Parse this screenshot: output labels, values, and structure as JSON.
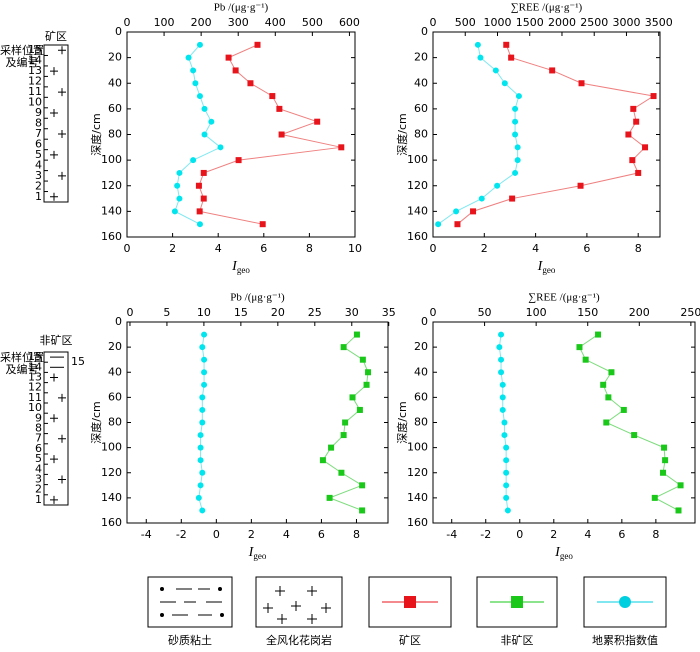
{
  "chart_data": [
    {
      "type": "line",
      "x2label": "Pb /(μg·g⁻¹)",
      "xlabel": [
        "I",
        "geo"
      ],
      "ylabel": "深度/cm",
      "y": [
        10,
        20,
        30,
        40,
        50,
        60,
        70,
        80,
        90,
        100,
        110,
        120,
        130,
        140,
        150
      ],
      "ylim": [
        0,
        160
      ],
      "yticks": [
        0,
        20,
        40,
        60,
        80,
        100,
        120,
        140,
        160
      ],
      "xlim": [
        0,
        10
      ],
      "xticks": [
        0,
        2,
        4,
        6,
        8,
        10
      ],
      "x2lim": [
        0,
        615
      ],
      "x2ticks": [
        0,
        100,
        200,
        300,
        400,
        500,
        600
      ],
      "series": [
        {
          "color": "#e8141c",
          "line_color": "#f08080",
          "marker": "square",
          "axis": "x2",
          "values": [
            352,
            274,
            293,
            333,
            392,
            411,
            513,
            417,
            578,
            301,
            207,
            194,
            207,
            196,
            366
          ]
        },
        {
          "color": "#00e5ee",
          "line_color": "#7fe8f0",
          "marker": "circle",
          "axis": "x",
          "values": [
            3.2,
            2.7,
            2.9,
            3.0,
            3.2,
            3.4,
            3.7,
            3.4,
            4.1,
            2.9,
            2.3,
            2.2,
            2.3,
            2.1,
            3.2
          ]
        }
      ]
    },
    {
      "type": "line",
      "x2label": "∑REE /(μg·g⁻¹)",
      "xlabel": [
        "I",
        "geo"
      ],
      "ylabel": "深度/cm",
      "y": [
        10,
        20,
        30,
        40,
        50,
        60,
        70,
        80,
        90,
        100,
        110,
        120,
        130,
        140,
        150
      ],
      "ylim": [
        0,
        160
      ],
      "yticks": [
        0,
        20,
        40,
        60,
        80,
        100,
        120,
        140,
        160
      ],
      "xlim": [
        0,
        8.85
      ],
      "xticks": [
        0,
        2,
        4,
        6,
        8
      ],
      "x2lim": [
        0,
        3520
      ],
      "x2ticks": [
        0,
        500,
        1000,
        1500,
        2000,
        2500,
        3000,
        3500
      ],
      "series": [
        {
          "color": "#e8141c",
          "line_color": "#f08080",
          "marker": "square",
          "axis": "x2",
          "values": [
            1136,
            1212,
            1848,
            2303,
            3420,
            3106,
            3151,
            3030,
            3288,
            3091,
            3182,
            2288,
            1227,
            621,
            379
          ]
        },
        {
          "color": "#00e5ee",
          "line_color": "#7fe8f0",
          "marker": "circle",
          "axis": "x",
          "values": [
            1.75,
            1.85,
            2.45,
            2.8,
            3.35,
            3.2,
            3.2,
            3.2,
            3.3,
            3.3,
            3.2,
            2.5,
            1.9,
            0.9,
            0.2
          ]
        }
      ]
    },
    {
      "type": "line",
      "x2label": "Pb /(μg·g⁻¹)",
      "xlabel": [
        "I",
        "geo"
      ],
      "ylabel": "深度/cm",
      "y": [
        10,
        20,
        30,
        40,
        50,
        60,
        70,
        80,
        90,
        100,
        110,
        120,
        130,
        140,
        150
      ],
      "ylim": [
        0,
        160
      ],
      "yticks": [
        0,
        20,
        40,
        60,
        80,
        100,
        120,
        140,
        160
      ],
      "xlim": [
        -5.1,
        9.8
      ],
      "xticks": [
        -4,
        -2,
        0,
        2,
        4,
        6,
        8
      ],
      "x2lim": [
        -0.4,
        34.9
      ],
      "x2ticks": [
        0,
        5,
        10,
        15,
        20,
        25,
        30,
        35
      ],
      "series": [
        {
          "color": "#19c819",
          "line_color": "#7ddc7d",
          "marker": "square",
          "axis": "x2",
          "values": [
            30.7,
            28.9,
            31.5,
            32.2,
            32.0,
            30.1,
            31.1,
            29.1,
            28.9,
            27.2,
            26.1,
            28.6,
            31.4,
            27.0,
            31.4
          ]
        },
        {
          "color": "#00e5ee",
          "line_color": "#7fe8f0",
          "marker": "circle",
          "axis": "x",
          "values": [
            -0.7,
            -0.8,
            -0.7,
            -0.7,
            -0.7,
            -0.8,
            -0.8,
            -0.8,
            -0.9,
            -0.9,
            -0.9,
            -0.8,
            -0.9,
            -1.0,
            -0.8
          ]
        }
      ]
    },
    {
      "type": "line",
      "x2label": "∑REE /(μg·g⁻¹)",
      "xlabel": [
        "I",
        "geo"
      ],
      "ylabel": "深度/cm",
      "y": [
        10,
        20,
        30,
        40,
        50,
        60,
        70,
        80,
        90,
        100,
        110,
        120,
        130,
        140,
        150
      ],
      "ylim": [
        0,
        160
      ],
      "yticks": [
        0,
        20,
        40,
        60,
        80,
        100,
        120,
        140,
        160
      ],
      "xlim": [
        -5.1,
        10.3
      ],
      "xticks": [
        -4,
        -2,
        0,
        2,
        4,
        6,
        8
      ],
      "x2lim": [
        0,
        254
      ],
      "x2ticks": [
        0,
        50,
        100,
        150,
        200,
        250
      ],
      "series": [
        {
          "color": "#19c819",
          "line_color": "#7ddc7d",
          "marker": "square",
          "axis": "x2",
          "values": [
            160,
            142,
            148,
            173,
            165,
            170,
            185,
            168,
            195,
            224,
            225,
            223,
            240,
            215,
            238
          ]
        },
        {
          "color": "#00e5ee",
          "line_color": "#7fe8f0",
          "marker": "circle",
          "axis": "x",
          "values": [
            -1.1,
            -1.2,
            -1.1,
            -1.1,
            -1.0,
            -1.0,
            -1.0,
            -0.9,
            -0.9,
            -0.8,
            -0.8,
            -0.8,
            -0.8,
            -0.8,
            -0.7
          ]
        }
      ]
    }
  ],
  "strata": {
    "mine": {
      "title": "矿区",
      "label": [
        "采样位置",
        "及编号"
      ],
      "numbers": [
        "15",
        "14",
        "13",
        "12",
        "11",
        "10",
        "9",
        "8",
        "7",
        "6",
        "5",
        "4",
        "3",
        "2",
        "1"
      ]
    },
    "nonmine": {
      "title": "非矿区",
      "label": [
        "采样位置",
        "及编号"
      ],
      "numbers": [
        "15",
        "14",
        "13",
        "12",
        "11",
        "10",
        "9",
        "8",
        "7",
        "6",
        "5",
        "4",
        "3",
        "2",
        "1"
      ],
      "side_number": "15"
    }
  },
  "legend": [
    "砂质粘土",
    "全风化花岗岩",
    "矿区",
    "非矿区",
    "地累积指数值"
  ]
}
